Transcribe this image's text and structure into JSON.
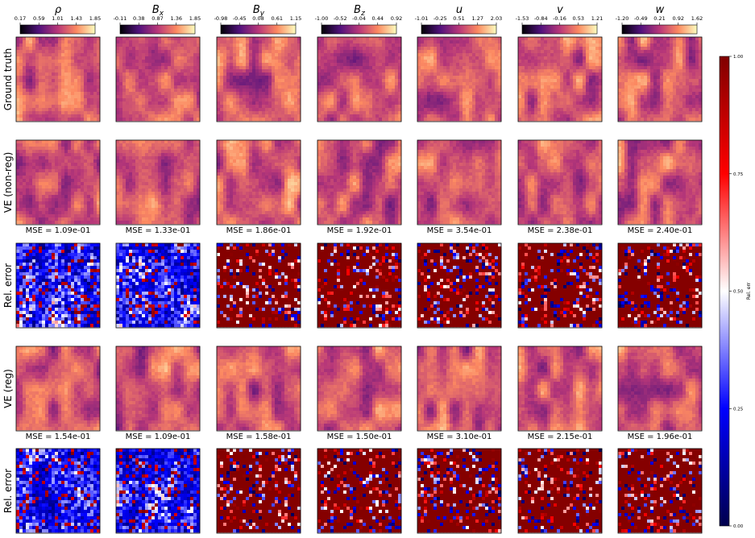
{
  "columns": [
    {
      "symbol": "ρ",
      "ticks": [
        "0.17",
        "0.59",
        "1.01",
        "1.43",
        "1.85"
      ]
    },
    {
      "symbol": "B",
      "subscript": "x",
      "ticks": [
        "-0.11",
        "0.38",
        "0.87",
        "1.36",
        "1.85"
      ]
    },
    {
      "symbol": "B",
      "subscript": "y",
      "ticks": [
        "-0.98",
        "-0.45",
        "0.08",
        "0.61",
        "1.15"
      ]
    },
    {
      "symbol": "B",
      "subscript": "z",
      "ticks": [
        "-1.00",
        "-0.52",
        "-0.04",
        "0.44",
        "0.92"
      ]
    },
    {
      "symbol": "u",
      "ticks": [
        "-1.01",
        "-0.25",
        "0.51",
        "1.27",
        "2.03"
      ]
    },
    {
      "symbol": "v",
      "ticks": [
        "-1.53",
        "-0.84",
        "-0.16",
        "0.53",
        "1.21"
      ]
    },
    {
      "symbol": "w",
      "ticks": [
        "-1.20",
        "-0.49",
        "0.21",
        "0.92",
        "1.62"
      ]
    }
  ],
  "rows": [
    "Ground truth",
    "VE (non-reg)",
    "Rel. error",
    "VE (reg)",
    "Rel. error"
  ],
  "mse_non_reg": [
    "MSE = 1.09e-01",
    "MSE = 1.33e-01",
    "MSE = 1.86e-01",
    "MSE = 1.92e-01",
    "MSE = 3.54e-01",
    "MSE = 2.38e-01",
    "MSE = 2.40e-01"
  ],
  "mse_reg": [
    "MSE = 1.54e-01",
    "MSE = 1.09e-01",
    "MSE = 1.58e-01",
    "MSE = 1.50e-01",
    "MSE = 3.10e-01",
    "MSE = 2.15e-01",
    "MSE = 1.96e-01"
  ],
  "error_colorbar": {
    "label": "Rel. err",
    "ticks": [
      "0.00",
      "0.25",
      "0.50",
      "0.75",
      "1.00"
    ]
  }
}
